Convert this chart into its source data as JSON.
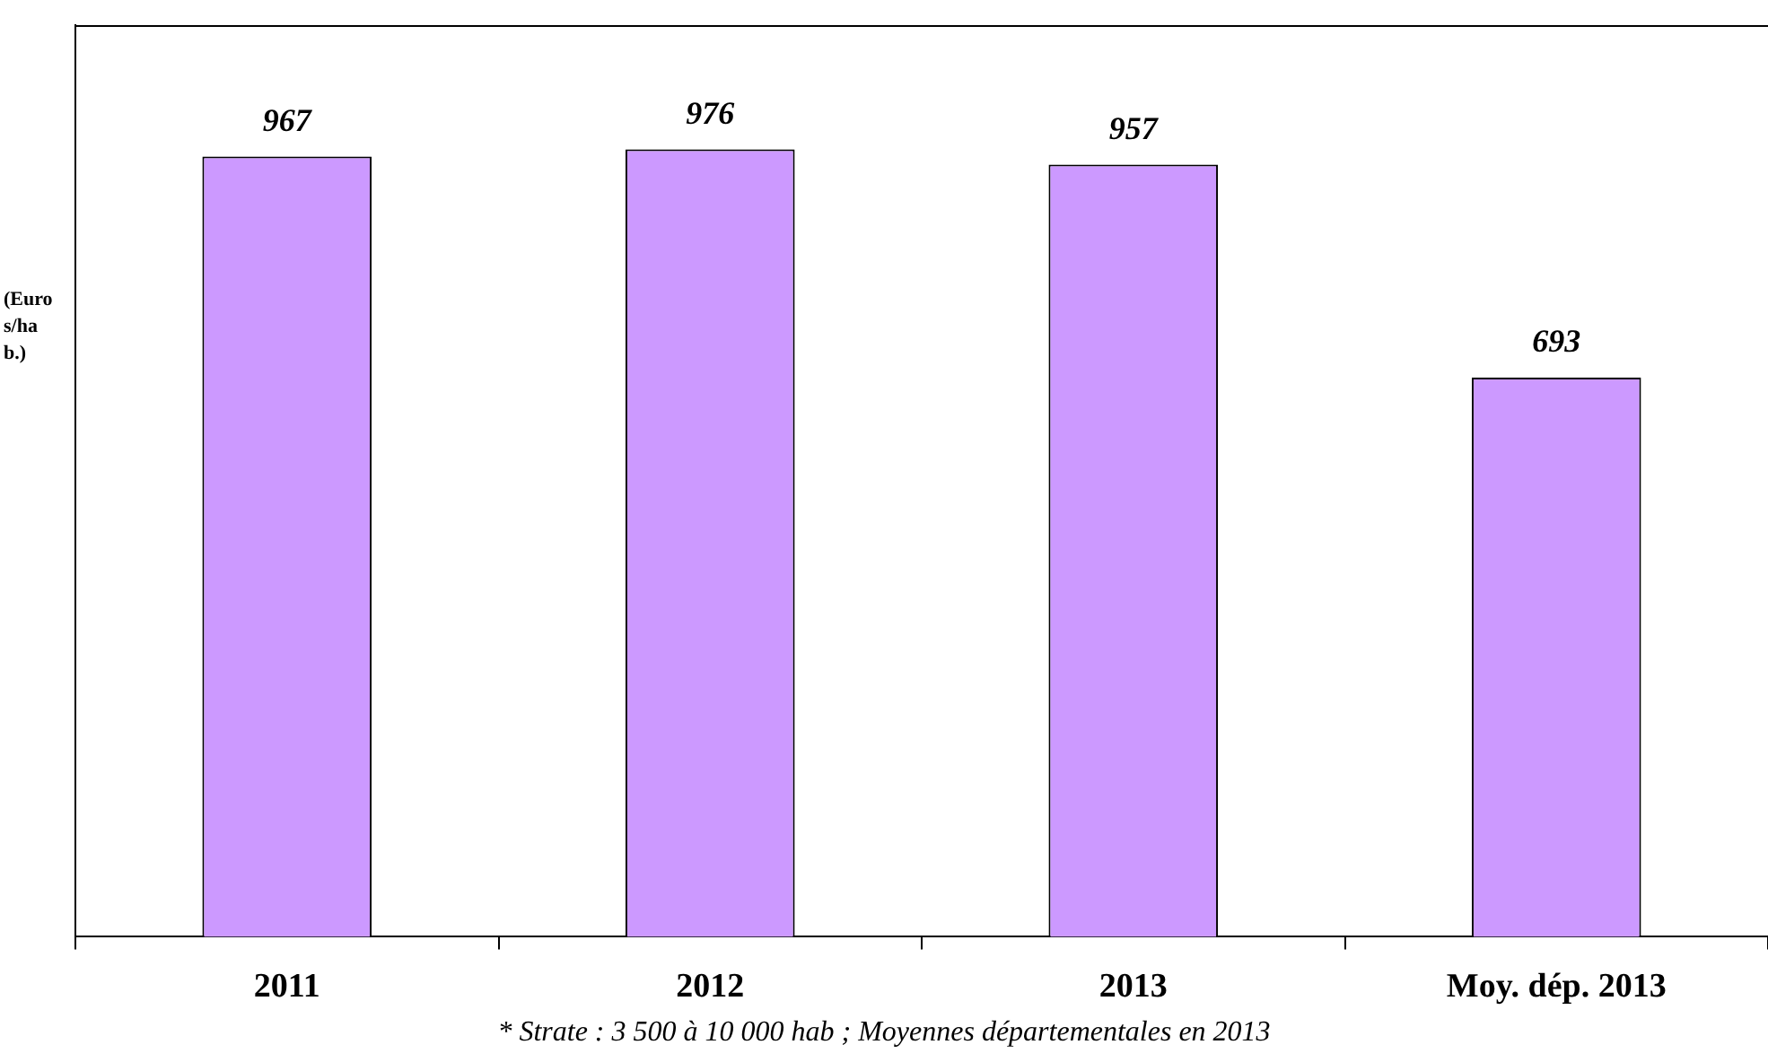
{
  "chart_data": {
    "type": "bar",
    "ylabel": "(Euros/hab.)",
    "categories": [
      "2011",
      "2012",
      "2013",
      "Moy. dép. 2013"
    ],
    "values": [
      967,
      976,
      957,
      693
    ],
    "color": "#cc99ff",
    "ylim": [
      0,
      1130
    ],
    "tick_labels": "x",
    "data_labels": true,
    "grid": false,
    "legend": false,
    "annotations": [
      "* Strate : 3 500 à 10 000 hab ;  Moyennes départementales en 2013"
    ]
  }
}
